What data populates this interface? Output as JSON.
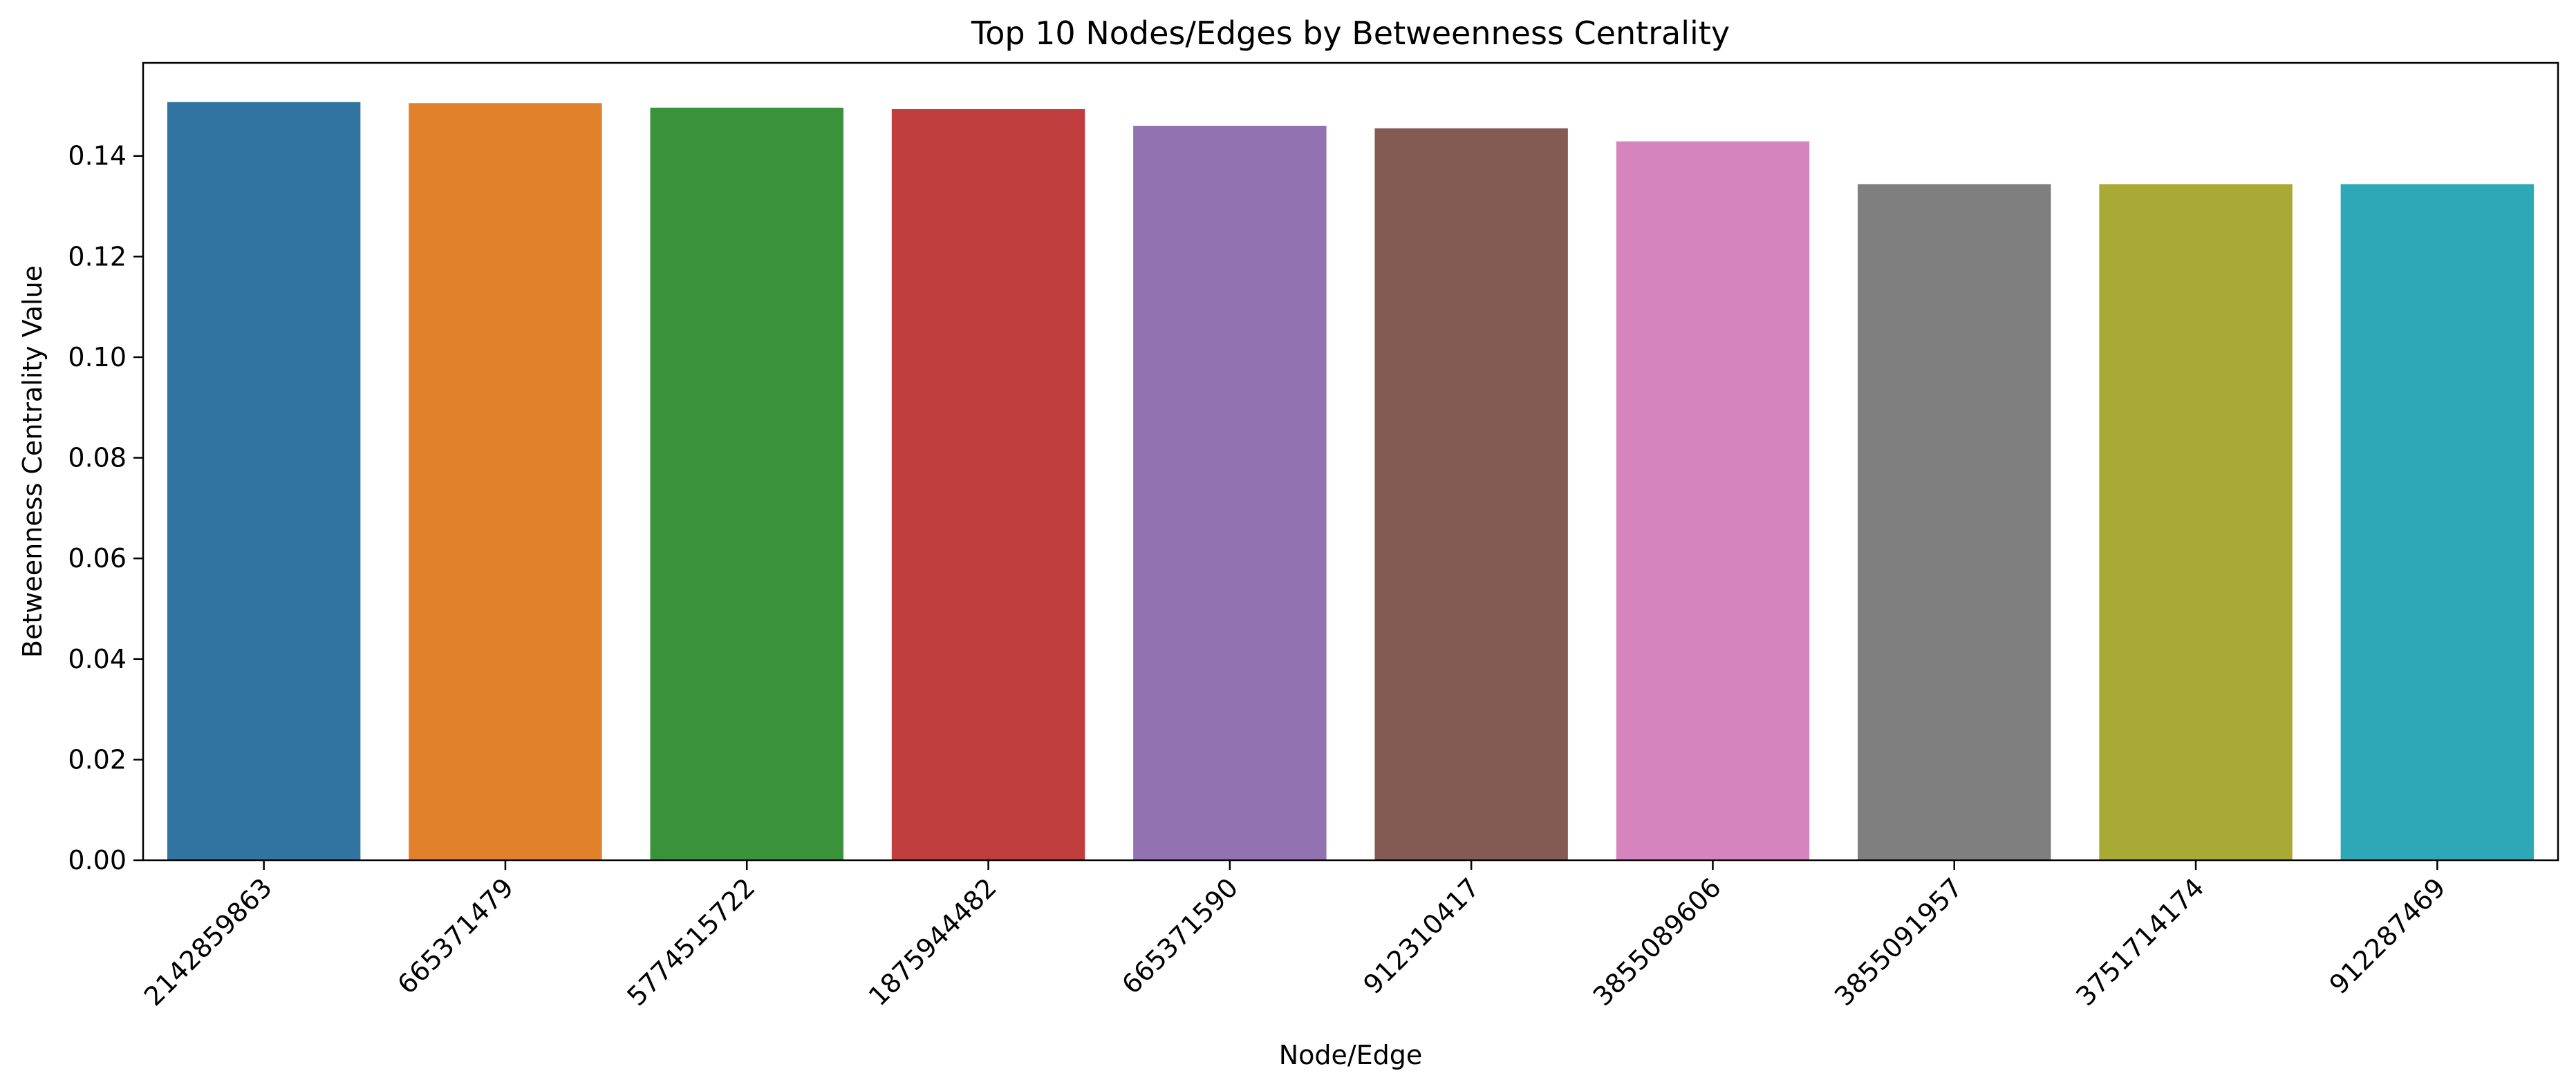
{
  "chart_data": {
    "type": "bar",
    "title": "Top 10 Nodes/Edges by Betweenness Centrality",
    "xlabel": "Node/Edge",
    "ylabel": "Betweenness Centrality Value",
    "categories": [
      "2142859863",
      "665371479",
      "5774515722",
      "1875944482",
      "665371590",
      "912310417",
      "3855089606",
      "3855091957",
      "3751714174",
      "912287469"
    ],
    "values": [
      0.1507,
      0.1505,
      0.1496,
      0.1493,
      0.146,
      0.1455,
      0.1429,
      0.1344,
      0.1344,
      0.1344
    ],
    "colors": [
      "#3274a1",
      "#e1812c",
      "#3a923a",
      "#c03d3e",
      "#9372b2",
      "#845b53",
      "#d684bd",
      "#7f7f7f",
      "#a9aa35",
      "#2ea8b7"
    ],
    "ylim": [
      0,
      0.1585
    ],
    "yticks": [
      0.0,
      0.02,
      0.04,
      0.06,
      0.08,
      0.1,
      0.12,
      0.14
    ],
    "ytick_labels": [
      "0.00",
      "0.02",
      "0.04",
      "0.06",
      "0.08",
      "0.10",
      "0.12",
      "0.14"
    ],
    "grid": false,
    "legend": "none"
  }
}
